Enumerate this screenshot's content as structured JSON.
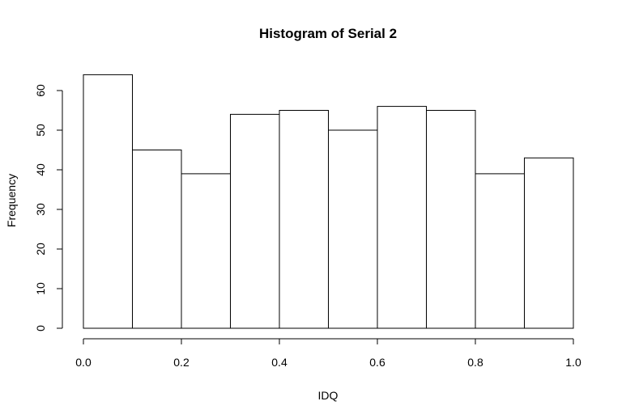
{
  "chart_data": {
    "type": "bar",
    "title": "Histogram of Serial 2",
    "xlabel": "IDQ",
    "ylabel": "Frequency",
    "bins": [
      {
        "start": 0.0,
        "end": 0.1,
        "count": 64
      },
      {
        "start": 0.1,
        "end": 0.2,
        "count": 45
      },
      {
        "start": 0.2,
        "end": 0.3,
        "count": 39
      },
      {
        "start": 0.3,
        "end": 0.4,
        "count": 54
      },
      {
        "start": 0.4,
        "end": 0.5,
        "count": 55
      },
      {
        "start": 0.5,
        "end": 0.6,
        "count": 50
      },
      {
        "start": 0.6,
        "end": 0.7,
        "count": 56
      },
      {
        "start": 0.7,
        "end": 0.8,
        "count": 55
      },
      {
        "start": 0.8,
        "end": 0.9,
        "count": 39
      },
      {
        "start": 0.9,
        "end": 1.0,
        "count": 43
      }
    ],
    "xlim": [
      0,
      1
    ],
    "ylim": [
      0,
      60
    ],
    "x_ticks": [
      "0.0",
      "0.2",
      "0.4",
      "0.6",
      "0.8",
      "1.0"
    ],
    "y_ticks": [
      "0",
      "10",
      "20",
      "30",
      "40",
      "50",
      "60"
    ],
    "colors": {
      "bar_fill": "#ffffff",
      "bar_stroke": "#000000"
    }
  }
}
